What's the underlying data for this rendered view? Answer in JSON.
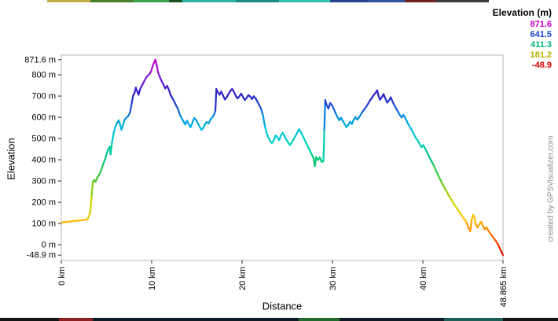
{
  "watermark": "created by GPSVisualizer.com",
  "chart_data": {
    "type": "line",
    "title": "",
    "xlabel": "Distance",
    "ylabel": "Elevation",
    "x_unit": "km",
    "y_unit": "m",
    "xlim": [
      0,
      48.865
    ],
    "ylim": [
      -74,
      893
    ],
    "grid": false,
    "line_width": 2.2,
    "legend": {
      "title": "Elevation (m)",
      "position": "top-right",
      "entries": [
        {
          "label": "871.6",
          "color": "#c800c8"
        },
        {
          "label": "641.5",
          "color": "#1e46d2"
        },
        {
          "label": "411.3",
          "color": "#00b478"
        },
        {
          "label": "181.2",
          "color": "#b4b400"
        },
        {
          "label": "-48.9",
          "color": "#e10000"
        }
      ]
    },
    "x_ticks": [
      {
        "v": 0,
        "label": "0 km"
      },
      {
        "v": 10,
        "label": "10 km"
      },
      {
        "v": 20,
        "label": "20 km"
      },
      {
        "v": 30,
        "label": "30 km"
      },
      {
        "v": 40,
        "label": "40 km"
      },
      {
        "v": 48.865,
        "label": "48.865 km"
      }
    ],
    "y_ticks": [
      {
        "v": 871.6,
        "label": "871.6 m"
      },
      {
        "v": 800,
        "label": "800 m"
      },
      {
        "v": 700,
        "label": "700 m"
      },
      {
        "v": 600,
        "label": "600 m"
      },
      {
        "v": 500,
        "label": "500 m"
      },
      {
        "v": 400,
        "label": "400 m"
      },
      {
        "v": 300,
        "label": "300 m"
      },
      {
        "v": 200,
        "label": "200 m"
      },
      {
        "v": 100,
        "label": "100 m"
      },
      {
        "v": 0,
        "label": "0 m"
      },
      {
        "v": -48.9,
        "label": "-48.9 m"
      }
    ],
    "color_stops": [
      [
        -74,
        "#c80000"
      ],
      [
        -48.9,
        "#e10000"
      ],
      [
        0,
        "#ff3c00"
      ],
      [
        60,
        "#ff7d00"
      ],
      [
        120,
        "#ffc300"
      ],
      [
        181.2,
        "#d7d700"
      ],
      [
        250,
        "#8fd200"
      ],
      [
        320,
        "#3cc83c"
      ],
      [
        411.3,
        "#00c882"
      ],
      [
        480,
        "#00d2be"
      ],
      [
        540,
        "#00c3e1"
      ],
      [
        600,
        "#0091e1"
      ],
      [
        641.5,
        "#1e50d7"
      ],
      [
        700,
        "#2823c3"
      ],
      [
        760,
        "#5f19d2"
      ],
      [
        820,
        "#9614d2"
      ],
      [
        871.6,
        "#c800c8"
      ],
      [
        893,
        "#c800c8"
      ]
    ],
    "points": [
      [
        0,
        105
      ],
      [
        0.6,
        107
      ],
      [
        1.2,
        111
      ],
      [
        1.8,
        113
      ],
      [
        2.4,
        116
      ],
      [
        2.9,
        120
      ],
      [
        3.2,
        150
      ],
      [
        3.35,
        230
      ],
      [
        3.5,
        296
      ],
      [
        3.65,
        305
      ],
      [
        3.8,
        297
      ],
      [
        4,
        318
      ],
      [
        4.2,
        330
      ],
      [
        4.4,
        350
      ],
      [
        4.6,
        375
      ],
      [
        4.8,
        398
      ],
      [
        5,
        425
      ],
      [
        5.2,
        450
      ],
      [
        5.35,
        462
      ],
      [
        5.45,
        425
      ],
      [
        5.6,
        478
      ],
      [
        5.8,
        528
      ],
      [
        6,
        558
      ],
      [
        6.2,
        576
      ],
      [
        6.35,
        586
      ],
      [
        6.5,
        566
      ],
      [
        6.65,
        541
      ],
      [
        6.8,
        560
      ],
      [
        7,
        588
      ],
      [
        7.2,
        598
      ],
      [
        7.4,
        606
      ],
      [
        7.6,
        622
      ],
      [
        7.8,
        668
      ],
      [
        7.95,
        702
      ],
      [
        8.1,
        714
      ],
      [
        8.25,
        740
      ],
      [
        8.4,
        722
      ],
      [
        8.55,
        706
      ],
      [
        8.7,
        730
      ],
      [
        8.85,
        744
      ],
      [
        9,
        756
      ],
      [
        9.2,
        772
      ],
      [
        9.4,
        788
      ],
      [
        9.6,
        798
      ],
      [
        9.8,
        806
      ],
      [
        9.95,
        818
      ],
      [
        10.1,
        840
      ],
      [
        10.25,
        856
      ],
      [
        10.4,
        871.6
      ],
      [
        10.55,
        848
      ],
      [
        10.7,
        812
      ],
      [
        10.9,
        790
      ],
      [
        11.1,
        770
      ],
      [
        11.3,
        754
      ],
      [
        11.5,
        736
      ],
      [
        11.7,
        748
      ],
      [
        11.9,
        730
      ],
      [
        12.1,
        704
      ],
      [
        12.3,
        690
      ],
      [
        12.5,
        674
      ],
      [
        12.7,
        656
      ],
      [
        12.9,
        640
      ],
      [
        13.1,
        614
      ],
      [
        13.3,
        597
      ],
      [
        13.5,
        582
      ],
      [
        13.7,
        566
      ],
      [
        13.9,
        584
      ],
      [
        14.1,
        568
      ],
      [
        14.3,
        553
      ],
      [
        14.5,
        574
      ],
      [
        14.7,
        596
      ],
      [
        14.9,
        588
      ],
      [
        15.1,
        572
      ],
      [
        15.3,
        556
      ],
      [
        15.5,
        541
      ],
      [
        15.7,
        550
      ],
      [
        15.9,
        566
      ],
      [
        16.1,
        578
      ],
      [
        16.3,
        571
      ],
      [
        16.5,
        589
      ],
      [
        16.7,
        600
      ],
      [
        16.9,
        612
      ],
      [
        17.05,
        632
      ],
      [
        17.15,
        733
      ],
      [
        17.3,
        720
      ],
      [
        17.5,
        706
      ],
      [
        17.7,
        721
      ],
      [
        17.9,
        702
      ],
      [
        18.1,
        684
      ],
      [
        18.3,
        694
      ],
      [
        18.5,
        710
      ],
      [
        18.7,
        724
      ],
      [
        18.9,
        734
      ],
      [
        19.1,
        719
      ],
      [
        19.3,
        701
      ],
      [
        19.5,
        689
      ],
      [
        19.7,
        699
      ],
      [
        19.9,
        711
      ],
      [
        20.1,
        696
      ],
      [
        20.3,
        681
      ],
      [
        20.5,
        691
      ],
      [
        20.7,
        704
      ],
      [
        20.9,
        698
      ],
      [
        21.1,
        686
      ],
      [
        21.3,
        699
      ],
      [
        21.5,
        689
      ],
      [
        21.7,
        673
      ],
      [
        21.9,
        657
      ],
      [
        22.1,
        640
      ],
      [
        22.3,
        612
      ],
      [
        22.5,
        563
      ],
      [
        22.7,
        527
      ],
      [
        22.9,
        506
      ],
      [
        23.1,
        489
      ],
      [
        23.3,
        479
      ],
      [
        23.5,
        491
      ],
      [
        23.7,
        514
      ],
      [
        23.9,
        506
      ],
      [
        24.1,
        493
      ],
      [
        24.3,
        514
      ],
      [
        24.5,
        527
      ],
      [
        24.7,
        511
      ],
      [
        24.9,
        496
      ],
      [
        25.1,
        481
      ],
      [
        25.3,
        469
      ],
      [
        25.5,
        481
      ],
      [
        25.7,
        497
      ],
      [
        25.9,
        511
      ],
      [
        26.1,
        527
      ],
      [
        26.3,
        544
      ],
      [
        26.5,
        531
      ],
      [
        26.7,
        513
      ],
      [
        26.9,
        496
      ],
      [
        27.1,
        479
      ],
      [
        27.3,
        461
      ],
      [
        27.5,
        443
      ],
      [
        27.7,
        426
      ],
      [
        27.9,
        409
      ],
      [
        28.05,
        370
      ],
      [
        28.2,
        413
      ],
      [
        28.4,
        399
      ],
      [
        28.6,
        411
      ],
      [
        28.8,
        390
      ],
      [
        29,
        393
      ],
      [
        29.1,
        540
      ],
      [
        29.2,
        681
      ],
      [
        29.35,
        658
      ],
      [
        29.55,
        641
      ],
      [
        29.75,
        667
      ],
      [
        29.95,
        656
      ],
      [
        30.15,
        639
      ],
      [
        30.35,
        619
      ],
      [
        30.55,
        601
      ],
      [
        30.75,
        586
      ],
      [
        30.95,
        598
      ],
      [
        31.15,
        583
      ],
      [
        31.35,
        569
      ],
      [
        31.55,
        553
      ],
      [
        31.75,
        564
      ],
      [
        31.95,
        579
      ],
      [
        32.15,
        568
      ],
      [
        32.35,
        589
      ],
      [
        32.55,
        601
      ],
      [
        32.75,
        589
      ],
      [
        32.95,
        600
      ],
      [
        33.15,
        614
      ],
      [
        33.35,
        627
      ],
      [
        33.55,
        639
      ],
      [
        33.75,
        651
      ],
      [
        33.95,
        664
      ],
      [
        34.15,
        679
      ],
      [
        34.35,
        691
      ],
      [
        34.55,
        704
      ],
      [
        34.75,
        714
      ],
      [
        34.95,
        727
      ],
      [
        35.1,
        701
      ],
      [
        35.25,
        683
      ],
      [
        35.45,
        694
      ],
      [
        35.65,
        709
      ],
      [
        35.85,
        689
      ],
      [
        36.05,
        669
      ],
      [
        36.25,
        679
      ],
      [
        36.45,
        694
      ],
      [
        36.65,
        673
      ],
      [
        36.85,
        656
      ],
      [
        37.05,
        641
      ],
      [
        37.25,
        626
      ],
      [
        37.45,
        611
      ],
      [
        37.65,
        599
      ],
      [
        37.85,
        611
      ],
      [
        38.05,
        597
      ],
      [
        38.25,
        579
      ],
      [
        38.45,
        563
      ],
      [
        38.65,
        549
      ],
      [
        38.85,
        533
      ],
      [
        39.05,
        516
      ],
      [
        39.25,
        501
      ],
      [
        39.45,
        489
      ],
      [
        39.65,
        473
      ],
      [
        39.85,
        459
      ],
      [
        40.05,
        469
      ],
      [
        40.25,
        453
      ],
      [
        40.45,
        436
      ],
      [
        40.65,
        419
      ],
      [
        40.85,
        401
      ],
      [
        41.05,
        386
      ],
      [
        41.25,
        369
      ],
      [
        41.45,
        349
      ],
      [
        41.65,
        331
      ],
      [
        41.85,
        313
      ],
      [
        42.05,
        296
      ],
      [
        42.25,
        279
      ],
      [
        42.45,
        263
      ],
      [
        42.65,
        249
      ],
      [
        42.85,
        233
      ],
      [
        43.05,
        219
      ],
      [
        43.25,
        206
      ],
      [
        43.45,
        191
      ],
      [
        43.65,
        179
      ],
      [
        43.85,
        166
      ],
      [
        44.05,
        153
      ],
      [
        44.25,
        141
      ],
      [
        44.45,
        129
      ],
      [
        44.65,
        116
      ],
      [
        44.85,
        103
      ],
      [
        45.05,
        79
      ],
      [
        45.25,
        63
      ],
      [
        45.4,
        117
      ],
      [
        45.55,
        141
      ],
      [
        45.7,
        129
      ],
      [
        45.85,
        96
      ],
      [
        46.05,
        81
      ],
      [
        46.25,
        96
      ],
      [
        46.45,
        108
      ],
      [
        46.65,
        89
      ],
      [
        46.85,
        73
      ],
      [
        47.05,
        81
      ],
      [
        47.25,
        66
      ],
      [
        47.45,
        53
      ],
      [
        47.65,
        43
      ],
      [
        47.85,
        31
      ],
      [
        48.05,
        19
      ],
      [
        48.25,
        6
      ],
      [
        48.45,
        -11
      ],
      [
        48.65,
        -29
      ],
      [
        48.865,
        -48.9
      ]
    ]
  },
  "edges": {
    "top": [
      [
        60,
        115,
        "#c3b04a"
      ],
      [
        115,
        170,
        "#4a7d2d"
      ],
      [
        170,
        215,
        "#35a84e"
      ],
      [
        215,
        232,
        "#1d4f23"
      ],
      [
        232,
        300,
        "#2fb3a6"
      ],
      [
        300,
        355,
        "#1f8a80"
      ],
      [
        355,
        420,
        "#35c2b2"
      ],
      [
        420,
        468,
        "#27418f"
      ],
      [
        468,
        515,
        "#32549e"
      ],
      [
        515,
        555,
        "#6e2121"
      ],
      [
        555,
        622,
        "#3a3a3a"
      ]
    ],
    "bottom": [
      [
        0,
        75,
        "#141414"
      ],
      [
        75,
        118,
        "#8c1f1f"
      ],
      [
        118,
        380,
        "#101c26"
      ],
      [
        380,
        432,
        "#226b2d"
      ],
      [
        432,
        565,
        "#0f1a24"
      ],
      [
        565,
        640,
        "#1d5f57"
      ],
      [
        640,
        710,
        "#141414"
      ]
    ]
  }
}
